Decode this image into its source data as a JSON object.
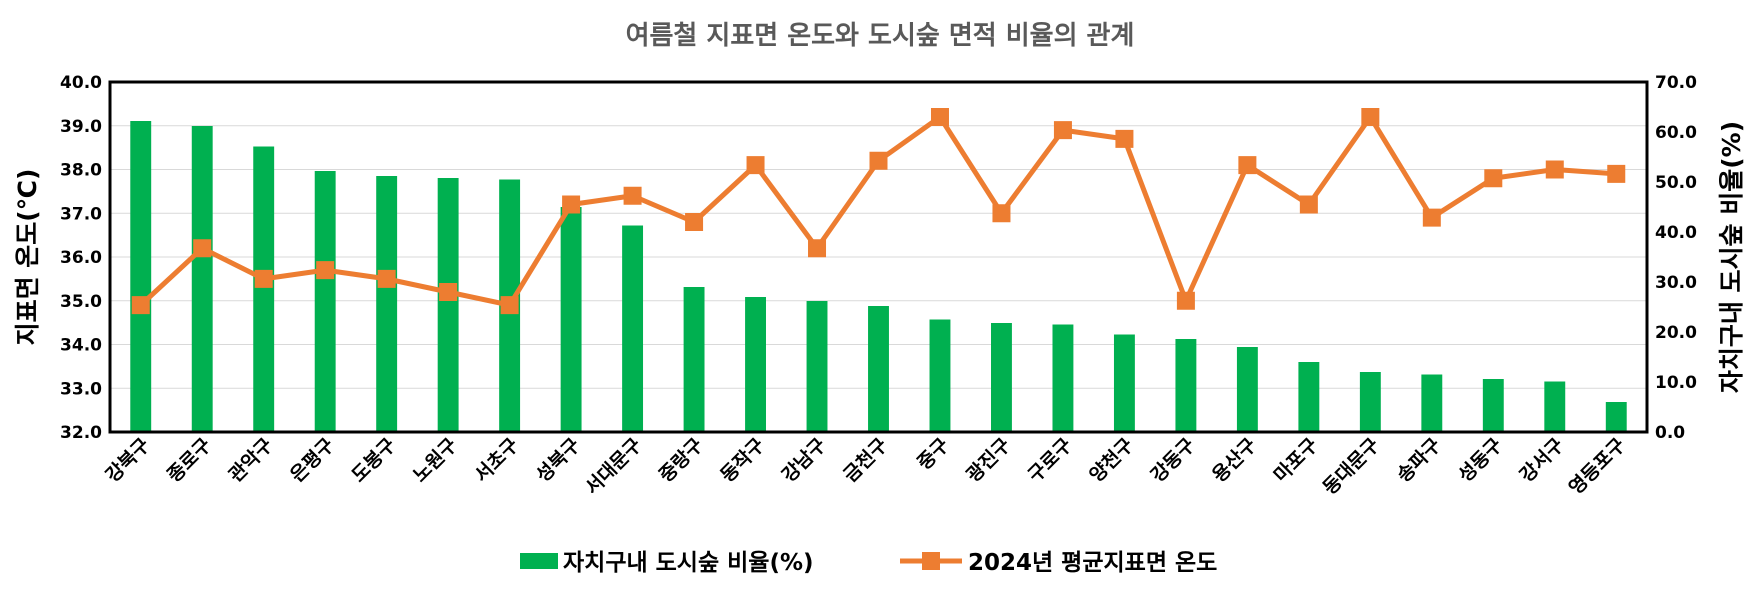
{
  "chart_data": {
    "type": "bar",
    "title": "여름철 지표면 온도와 도시숲 면적 비율의 관계",
    "categories": [
      "강북구",
      "종로구",
      "관악구",
      "은평구",
      "도봉구",
      "노원구",
      "서초구",
      "성북구",
      "서대문구",
      "중랑구",
      "동작구",
      "강남구",
      "금천구",
      "중구",
      "광진구",
      "구로구",
      "양천구",
      "강동구",
      "용산구",
      "마포구",
      "동대문구",
      "송파구",
      "성동구",
      "강서구",
      "영등포구"
    ],
    "series": [
      {
        "name": "자치구내 도시숲 비율(%)",
        "type": "bar",
        "axis": "right",
        "color": "#00B050",
        "values": [
          62.2,
          61.2,
          57.1,
          52.2,
          51.2,
          50.8,
          50.5,
          45.0,
          41.3,
          29.0,
          27.0,
          26.2,
          25.2,
          22.5,
          21.8,
          21.5,
          19.5,
          18.6,
          17.0,
          14.0,
          12.0,
          11.5,
          10.6,
          10.1,
          6.0
        ]
      },
      {
        "name": "2024년 평균지표면 온도",
        "type": "line",
        "axis": "left",
        "color": "#ED7D31",
        "values": [
          34.9,
          36.2,
          35.5,
          35.7,
          35.5,
          35.2,
          34.9,
          37.2,
          37.4,
          36.8,
          38.1,
          36.2,
          38.2,
          39.2,
          37.0,
          38.9,
          38.7,
          35.0,
          38.1,
          37.2,
          39.2,
          36.9,
          37.8,
          38.0,
          37.9
        ]
      }
    ],
    "y_left": {
      "label": "지표면 온도(℃)",
      "min": 32.0,
      "max": 40.0,
      "step": 1.0,
      "ticks": [
        "32.0",
        "33.0",
        "34.0",
        "35.0",
        "36.0",
        "37.0",
        "38.0",
        "39.0",
        "40.0"
      ]
    },
    "y_right": {
      "label": "자치구내 도시숲 비율(%)",
      "min": 0.0,
      "max": 70.0,
      "step": 10.0,
      "ticks": [
        "0.0",
        "10.0",
        "20.0",
        "30.0",
        "40.0",
        "50.0",
        "60.0",
        "70.0"
      ]
    },
    "grid": true,
    "legend": {
      "position": "bottom",
      "items": [
        "자치구내 도시숲 비율(%)",
        "2024년 평균지표면 온도"
      ]
    }
  }
}
